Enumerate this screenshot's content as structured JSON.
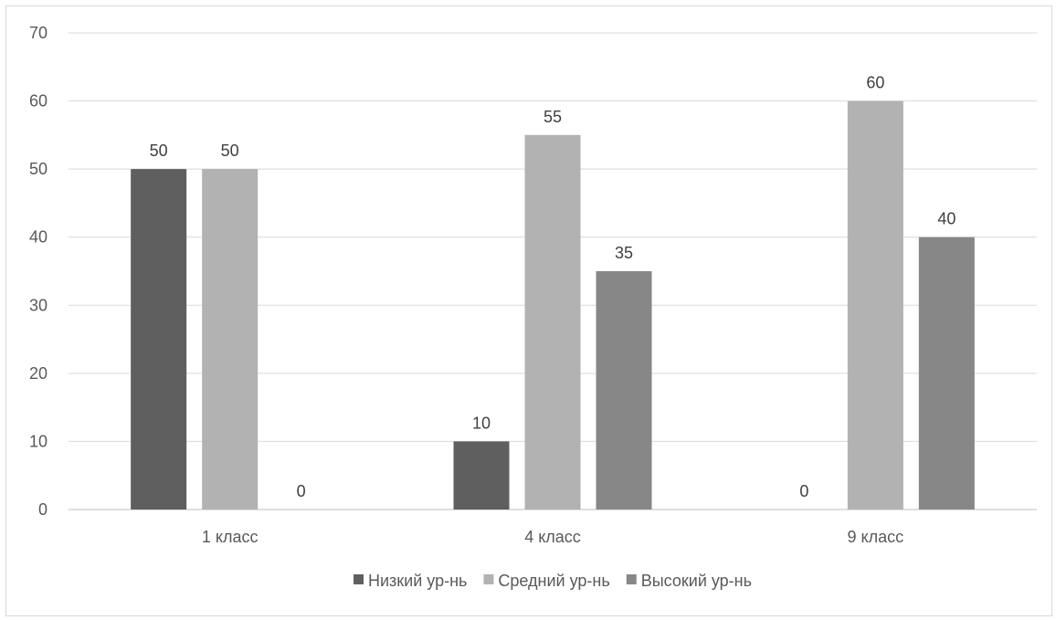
{
  "chart_data": {
    "type": "bar",
    "title": "",
    "xlabel": "",
    "ylabel": "",
    "categories": [
      "1 класс",
      "4 класс",
      "9 класс"
    ],
    "series": [
      {
        "name": "Низкий ур-нь",
        "values": [
          50,
          10,
          0
        ],
        "color": "#5f5f5f"
      },
      {
        "name": "Средний ур-нь",
        "values": [
          50,
          55,
          60
        ],
        "color": "#b2b2b2"
      },
      {
        "name": "Высокий ур-нь",
        "values": [
          0,
          35,
          40
        ],
        "color": "#878787"
      }
    ],
    "ylim": [
      0,
      70
    ],
    "yticks": [
      0,
      10,
      20,
      30,
      40,
      50,
      60,
      70
    ],
    "grid": true,
    "data_labels": true,
    "legend_position": "bottom"
  }
}
